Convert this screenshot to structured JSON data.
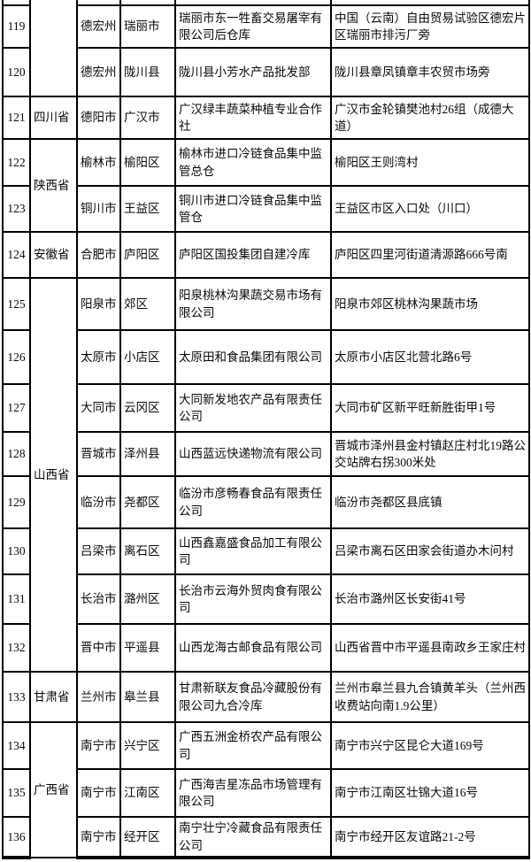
{
  "table": {
    "rows": [
      {
        "no": "",
        "province": {
          "label": "",
          "rowspan": 3
        },
        "city": "",
        "district": "",
        "company": "",
        "address": ""
      },
      {
        "no": "119",
        "province": null,
        "city": "德宏州",
        "district": "瑞丽市",
        "company": "瑞丽市东一牲畜交易屠宰有限公司后仓库",
        "address": "中国（云南）自由贸易试验区德宏片区瑞丽市排污厂旁"
      },
      {
        "no": "120",
        "province": null,
        "city": "德宏州",
        "district": "陇川县",
        "company": "陇川县小芳水产品批发部",
        "address": "陇川县章凤镇章丰农贸市场旁"
      },
      {
        "no": "121",
        "province": {
          "label": "四川省",
          "rowspan": 1
        },
        "city": "德阳市",
        "district": "广汉市",
        "company": "广汉绿丰蔬菜种植专业合作社",
        "address": "广汉市金轮镇樊池村26组（成德大道）"
      },
      {
        "no": "122",
        "province": {
          "label": "陕西省",
          "rowspan": 2
        },
        "city": "榆林市",
        "district": "榆阳区",
        "company": "榆林市进口冷链食品集中监管总仓",
        "address": "榆阳区王则湾村"
      },
      {
        "no": "123",
        "province": null,
        "city": "铜川市",
        "district": "王益区",
        "company": "铜川市进口冷链食品集中监管仓",
        "address": "王益区市区入口处（川口）"
      },
      {
        "no": "124",
        "province": {
          "label": "安徽省",
          "rowspan": 1
        },
        "city": "合肥市",
        "district": "庐阳区",
        "company": "庐阳区国投集团自建冷库",
        "address": "庐阳区四里河街道清源路666号南"
      },
      {
        "no": "125",
        "province": {
          "label": "山西省",
          "rowspan": 8
        },
        "city": "阳泉市",
        "district": "郊区",
        "company": "阳泉桃林沟果蔬交易市场有限公司",
        "address": "阳泉市郊区桃林沟果蔬市场"
      },
      {
        "no": "126",
        "province": null,
        "city": "太原市",
        "district": "小店区",
        "company": "太原田和食品集团有限公司",
        "address": "太原市小店区北营北路6号"
      },
      {
        "no": "127",
        "province": null,
        "city": "大同市",
        "district": "云冈区",
        "company": "大同新发地农产品有限责任公司",
        "address": "大同市矿区新平旺新胜街甲1号"
      },
      {
        "no": "128",
        "province": null,
        "city": "晋城市",
        "district": "泽州县",
        "company": "山西蓝远快递物流有限公司",
        "address": "晋城市泽州县金村镇赵庄村北19路公交站牌右拐300米处"
      },
      {
        "no": "129",
        "province": null,
        "city": "临汾市",
        "district": "尧都区",
        "company": "临汾市彦畅春食品有限责任公司",
        "address": "临汾市尧都区县底镇"
      },
      {
        "no": "130",
        "province": null,
        "city": "吕梁市",
        "district": "离石区",
        "company": "山西鑫嘉盛食品加工有限公司",
        "address": "吕梁市离石区田家会街道办木问村"
      },
      {
        "no": "131",
        "province": null,
        "city": "长治市",
        "district": "潞州区",
        "company": "长治市云海外贸肉食有限公司",
        "address": "长治市潞州区长安街41号"
      },
      {
        "no": "132",
        "province": null,
        "city": "晋中市",
        "district": "平遥县",
        "company": "山西龙海古邮食品有限公司",
        "address": "山西省晋中市平遥县南政乡王家庄村"
      },
      {
        "no": "133",
        "province": {
          "label": "甘肃省",
          "rowspan": 1
        },
        "city": "兰州市",
        "district": "皋兰县",
        "company": "甘肃新联友食品冷藏股份有限公司九合冷库",
        "address": "兰州市皋兰县九合镇黄羊头（兰州西收费站向南1.9公里）"
      },
      {
        "no": "134",
        "province": {
          "label": "广西省",
          "rowspan": 3
        },
        "city": "南宁市",
        "district": "兴宁区",
        "company": "广西五洲金桥农产品有限公司",
        "address": "南宁市兴宁区昆仑大道169号"
      },
      {
        "no": "135",
        "province": null,
        "city": "南宁市",
        "district": "江南区",
        "company": "广西海吉星冻品市场管理有限公司",
        "address": "南宁市江南区壮锦大道16号"
      },
      {
        "no": "136",
        "province": null,
        "city": "南宁市",
        "district": "经开区",
        "company": "南宁壮宁冷藏食品有限责任公司",
        "address": "南宁市经开区友谊路21-2号"
      }
    ]
  }
}
